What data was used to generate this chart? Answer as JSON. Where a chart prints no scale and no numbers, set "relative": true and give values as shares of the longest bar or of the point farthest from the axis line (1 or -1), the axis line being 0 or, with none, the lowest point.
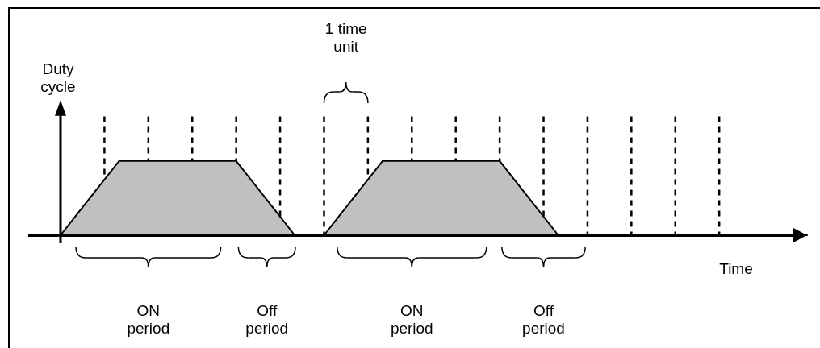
{
  "chart_data": {
    "type": "area",
    "relative": true,
    "xlabel": "Time",
    "ylabel": "Duty cycle",
    "categories": [
      null,
      null,
      null,
      null,
      null,
      null,
      null,
      null,
      null,
      null,
      null,
      null,
      null,
      null,
      null,
      null,
      null,
      null,
      null,
      null,
      null,
      null,
      null,
      null,
      null,
      null,
      null,
      null,
      null,
      null,
      null,
      null,
      null,
      null,
      null,
      null,
      null,
      null,
      null,
      null,
      null,
      null,
      null,
      null,
      null,
      null,
      null,
      null,
      null,
      null,
      null,
      null
    ],
    "series": [
      {
        "color": "#c0c0c0",
        "values": [
          0,
          0.25,
          0.5,
          0.75,
          1,
          1,
          1,
          1,
          1,
          1,
          1,
          1,
          1,
          0.75,
          0.5,
          0.25,
          0,
          0,
          0,
          0.25,
          0.5,
          0.75,
          1,
          1,
          1,
          1,
          1,
          1,
          1,
          1,
          1,
          0.75,
          0.5,
          0.25,
          0,
          0,
          0,
          0,
          0,
          0,
          0,
          0,
          0,
          0,
          0,
          0,
          0,
          0,
          0,
          0,
          0,
          0
        ]
      }
    ],
    "grid": "x",
    "annotations": [
      "1 time unit",
      "ON period",
      "Off period",
      "ON period",
      "Off period"
    ]
  }
}
